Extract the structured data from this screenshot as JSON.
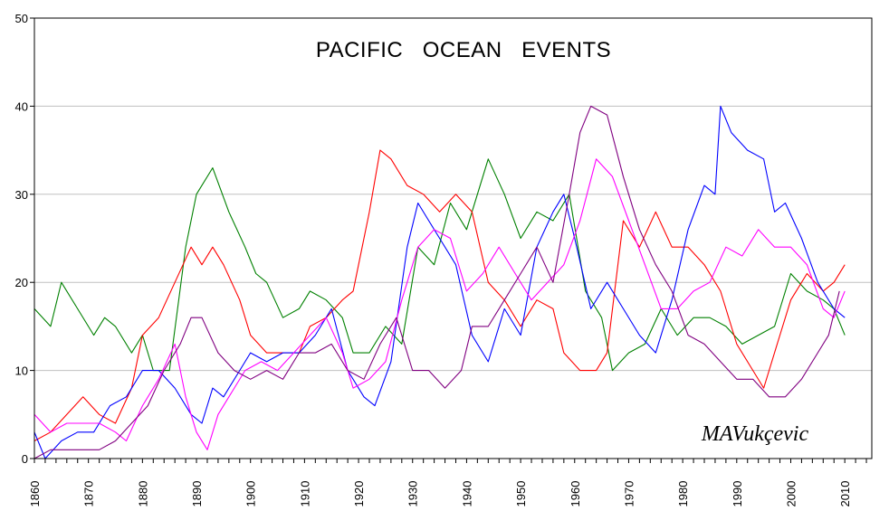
{
  "chart_data": {
    "type": "line",
    "title": "PACIFIC   OCEAN   EVENTS",
    "watermark": "MAVukçevic",
    "xlabel": "",
    "ylabel": "",
    "xlim": [
      1860,
      2015
    ],
    "ylim": [
      0,
      50
    ],
    "y_ticks": [
      0,
      10,
      20,
      30,
      40,
      50
    ],
    "x_ticks": [
      1860,
      1870,
      1880,
      1890,
      1900,
      1910,
      1920,
      1930,
      1940,
      1950,
      1960,
      1970,
      1980,
      1990,
      2000,
      2010
    ],
    "grid": "horizontal",
    "legend": "none",
    "series": [
      {
        "color": "#008000",
        "x": [
          1860,
          1863,
          1865,
          1868,
          1871,
          1873,
          1875,
          1878,
          1880,
          1882,
          1885,
          1888,
          1890,
          1893,
          1896,
          1899,
          1901,
          1903,
          1906,
          1909,
          1911,
          1914,
          1917,
          1919,
          1922,
          1925,
          1928,
          1931,
          1934,
          1937,
          1940,
          1944,
          1947,
          1950,
          1953,
          1956,
          1959,
          1962,
          1965,
          1967,
          1970,
          1973,
          1976,
          1979,
          1982,
          1985,
          1988,
          1991,
          1994,
          1997,
          2000,
          2003,
          2006,
          2008,
          2010
        ],
        "y": [
          17,
          15,
          20,
          17,
          14,
          16,
          15,
          12,
          14,
          10,
          10,
          24,
          30,
          33,
          28,
          24,
          21,
          20,
          16,
          17,
          19,
          18,
          16,
          12,
          12,
          15,
          13,
          24,
          22,
          29,
          26,
          34,
          30,
          25,
          28,
          27,
          30,
          19,
          16,
          10,
          12,
          13,
          17,
          14,
          16,
          16,
          15,
          13,
          14,
          15,
          21,
          19,
          18,
          17,
          14
        ]
      },
      {
        "color": "#ff0000",
        "x": [
          1860,
          1863,
          1866,
          1869,
          1872,
          1875,
          1878,
          1880,
          1883,
          1886,
          1889,
          1891,
          1893,
          1895,
          1898,
          1900,
          1903,
          1906,
          1909,
          1911,
          1914,
          1917,
          1919,
          1922,
          1924,
          1926,
          1929,
          1932,
          1935,
          1938,
          1941,
          1944,
          1947,
          1950,
          1953,
          1956,
          1958,
          1961,
          1964,
          1966,
          1969,
          1972,
          1975,
          1978,
          1981,
          1984,
          1987,
          1990,
          1993,
          1995,
          1998,
          2000,
          2003,
          2006,
          2008,
          2010
        ],
        "y": [
          2,
          3,
          5,
          7,
          5,
          4,
          8,
          14,
          16,
          20,
          24,
          22,
          24,
          22,
          18,
          14,
          12,
          12,
          12,
          15,
          16,
          18,
          19,
          28,
          35,
          34,
          31,
          30,
          28,
          30,
          28,
          20,
          18,
          15,
          18,
          17,
          12,
          10,
          10,
          12,
          27,
          24,
          28,
          24,
          24,
          22,
          19,
          13,
          10,
          8,
          14,
          18,
          21,
          19,
          20,
          22
        ]
      },
      {
        "color": "#0000ff",
        "x": [
          1860,
          1862,
          1865,
          1868,
          1871,
          1874,
          1877,
          1880,
          1883,
          1886,
          1889,
          1891,
          1893,
          1895,
          1898,
          1900,
          1903,
          1906,
          1909,
          1912,
          1915,
          1918,
          1921,
          1923,
          1926,
          1929,
          1931,
          1933,
          1935,
          1938,
          1941,
          1944,
          1947,
          1950,
          1953,
          1956,
          1958,
          1960,
          1963,
          1966,
          1969,
          1972,
          1975,
          1978,
          1981,
          1984,
          1986,
          1987,
          1989,
          1992,
          1995,
          1997,
          1999,
          2002,
          2005,
          2008,
          2010
        ],
        "y": [
          3,
          0,
          2,
          3,
          3,
          6,
          7,
          10,
          10,
          8,
          5,
          4,
          8,
          7,
          10,
          12,
          11,
          12,
          12,
          14,
          17,
          10,
          7,
          6,
          11,
          24,
          29,
          27,
          25,
          22,
          14,
          11,
          17,
          14,
          24,
          28,
          30,
          25,
          17,
          20,
          17,
          14,
          12,
          18,
          26,
          31,
          30,
          40,
          37,
          35,
          34,
          28,
          29,
          25,
          20,
          17,
          16
        ]
      },
      {
        "color": "#ff00ff",
        "x": [
          1860,
          1863,
          1866,
          1869,
          1872,
          1875,
          1877,
          1880,
          1883,
          1886,
          1888,
          1890,
          1892,
          1894,
          1897,
          1899,
          1902,
          1905,
          1908,
          1911,
          1914,
          1917,
          1919,
          1922,
          1925,
          1928,
          1931,
          1934,
          1937,
          1940,
          1943,
          1946,
          1949,
          1952,
          1955,
          1958,
          1961,
          1964,
          1967,
          1970,
          1973,
          1976,
          1979,
          1982,
          1985,
          1988,
          1991,
          1994,
          1997,
          2000,
          2003,
          2006,
          2008,
          2010
        ],
        "y": [
          5,
          3,
          4,
          4,
          4,
          3,
          2,
          6,
          9,
          13,
          7,
          3,
          1,
          5,
          8,
          10,
          11,
          10,
          12,
          14,
          16,
          12,
          8,
          9,
          11,
          18,
          24,
          26,
          25,
          19,
          21,
          24,
          21,
          18,
          20,
          22,
          27,
          34,
          32,
          27,
          22,
          17,
          17,
          19,
          20,
          24,
          23,
          26,
          24,
          24,
          22,
          17,
          16,
          19
        ]
      },
      {
        "color": "#800080",
        "x": [
          1860,
          1863,
          1866,
          1869,
          1872,
          1875,
          1878,
          1881,
          1884,
          1887,
          1889,
          1891,
          1894,
          1897,
          1900,
          1903,
          1906,
          1909,
          1912,
          1915,
          1918,
          1921,
          1924,
          1927,
          1930,
          1933,
          1936,
          1939,
          1941,
          1944,
          1947,
          1950,
          1953,
          1956,
          1959,
          1961,
          1963,
          1966,
          1969,
          1972,
          1975,
          1978,
          1981,
          1984,
          1987,
          1990,
          1993,
          1996,
          1999,
          2002,
          2005,
          2007,
          2009
        ],
        "y": [
          0,
          1,
          1,
          1,
          1,
          2,
          4,
          6,
          10,
          13,
          16,
          16,
          12,
          10,
          9,
          10,
          9,
          12,
          12,
          13,
          10,
          9,
          13,
          16,
          10,
          10,
          8,
          10,
          15,
          15,
          18,
          21,
          24,
          20,
          30,
          37,
          40,
          39,
          32,
          26,
          22,
          19,
          14,
          13,
          11,
          9,
          9,
          7,
          7,
          9,
          12,
          14,
          19
        ]
      }
    ]
  }
}
